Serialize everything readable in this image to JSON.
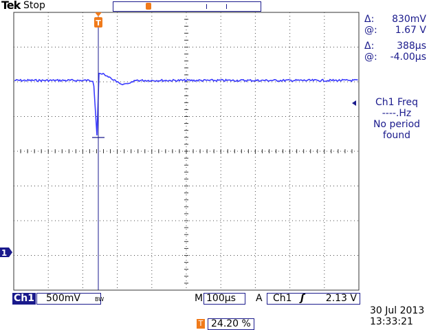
{
  "header": {
    "brand": "Tek",
    "run_state": "Stop"
  },
  "cursors": {
    "voltage_delta_label": "Δ:",
    "voltage_delta": "830mV",
    "voltage_at_label": "@:",
    "voltage_at": "1.67 V",
    "time_delta_label": "Δ:",
    "time_delta": "388µs",
    "time_at_label": "@:",
    "time_at": "-4.00µs"
  },
  "measurement": {
    "line1": "Ch1 Freq",
    "line2": "----.Hz",
    "line3": "No period",
    "line4": "found"
  },
  "status": {
    "channel_tag": "Ch1",
    "volts_per_div": "500mV",
    "bw_flag": "BW",
    "timebase_tag": "M",
    "time_per_div": "100µs",
    "trigger_tag": "A",
    "trigger_source": "Ch1",
    "trigger_slope_icon": "rising-edge-icon",
    "trigger_level": "2.13 V",
    "trigger_position_icon": "T",
    "trigger_position": "24.20 %",
    "date": "30 Jul  2013",
    "time": "13:33:21"
  },
  "markers": {
    "ground_marker": "1",
    "trigger_marker": "T"
  },
  "colors": {
    "trace": "#3a3aff",
    "ui": "#1a1a8c",
    "trigger": "#f07a1a",
    "grid": "#222222"
  }
}
